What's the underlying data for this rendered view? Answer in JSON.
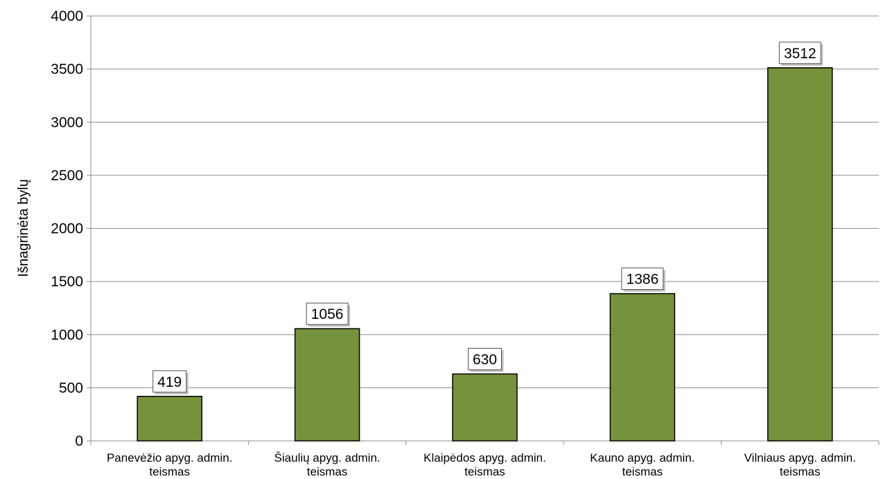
{
  "chart_data": {
    "type": "bar",
    "title": "",
    "xlabel": "",
    "ylabel": "Išnagrinėta bylų",
    "ylim": [
      0,
      4000
    ],
    "yticks": [
      0,
      500,
      1000,
      1500,
      2000,
      2500,
      3000,
      3500,
      4000
    ],
    "grid": true,
    "legend": "none",
    "bar_color": "#76923c",
    "categories": [
      [
        "Panevėžio apyg. admin.",
        "teismas"
      ],
      [
        "Šiaulių apyg. admin.",
        "teismas"
      ],
      [
        "Klaipėdos apyg. admin.",
        "teismas"
      ],
      [
        "Kauno apyg. admin.",
        "teismas"
      ],
      [
        "Vilniaus apyg. admin.",
        "teismas"
      ]
    ],
    "values": [
      419,
      1056,
      630,
      1386,
      3512
    ]
  }
}
